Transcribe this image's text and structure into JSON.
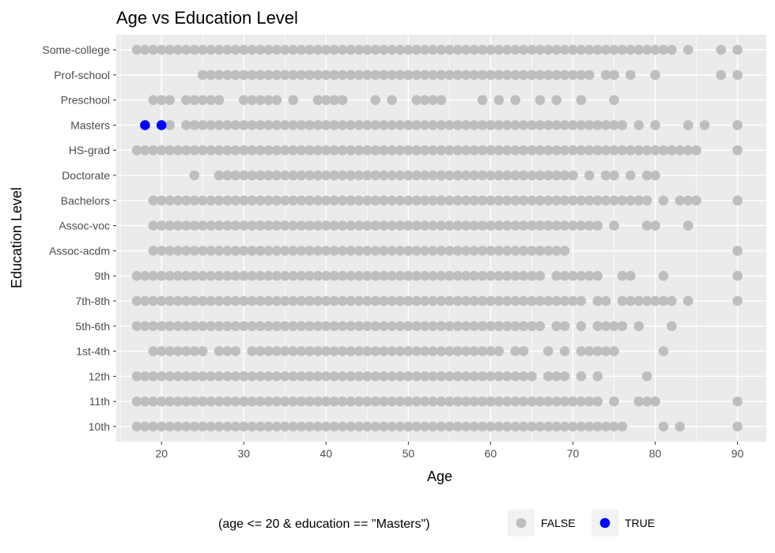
{
  "chart_data": {
    "type": "scatter",
    "title": "Age vs Education Level",
    "xlabel": "Age",
    "ylabel": "Education Level",
    "xlim": [
      14.5,
      93.5
    ],
    "x_ticks": [
      20,
      30,
      40,
      50,
      60,
      70,
      80,
      90
    ],
    "categories": [
      "10th",
      "11th",
      "12th",
      "1st-4th",
      "5th-6th",
      "7th-8th",
      "9th",
      "Assoc-acdm",
      "Assoc-voc",
      "Bachelors",
      "Doctorate",
      "HS-grad",
      "Masters",
      "Preschool",
      "Prof-school",
      "Some-college"
    ],
    "grid": true,
    "legend": {
      "title": "(age <= 20 & education == \"Masters\")",
      "position": "bottom",
      "entries": [
        {
          "label": "FALSE",
          "color": "#BEBEBE"
        },
        {
          "label": "TRUE",
          "color": "#0000FF"
        }
      ]
    },
    "colors": {
      "FALSE": "#BEBEBE",
      "TRUE": "#0000FF",
      "panel": "#EBEBEB",
      "grid": "#FFFFFF"
    },
    "series": [
      {
        "name": "FALSE",
        "points": {
          "Some-college": {
            "ranges": [
              [
                17,
                82
              ]
            ],
            "extra": [
              84,
              88,
              90
            ]
          },
          "Prof-school": {
            "ranges": [
              [
                25,
                72
              ]
            ],
            "extra": [
              74,
              75,
              77,
              80,
              88,
              90
            ]
          },
          "Preschool": {
            "ranges": [
              [
                19,
                21
              ],
              [
                23,
                27
              ],
              [
                30,
                34
              ],
              [
                39,
                42
              ]
            ],
            "extra": [
              36,
              46,
              48,
              51,
              52,
              53,
              54,
              59,
              61,
              63,
              66,
              68,
              71,
              75
            ]
          },
          "Masters": {
            "ranges": [
              [
                23,
                76
              ]
            ],
            "extra": [
              21,
              78,
              80,
              84,
              86,
              90
            ]
          },
          "HS-grad": {
            "ranges": [
              [
                17,
                85
              ]
            ],
            "extra": [
              90
            ]
          },
          "Doctorate": {
            "ranges": [
              [
                27,
                70
              ]
            ],
            "extra": [
              24,
              72,
              74,
              75,
              77,
              79,
              80
            ]
          },
          "Bachelors": {
            "ranges": [
              [
                19,
                79
              ]
            ],
            "extra": [
              81,
              83,
              84,
              85,
              90
            ]
          },
          "Assoc-voc": {
            "ranges": [
              [
                19,
                73
              ]
            ],
            "extra": [
              75,
              79,
              80,
              84
            ]
          },
          "Assoc-acdm": {
            "ranges": [
              [
                19,
                69
              ]
            ],
            "extra": [
              90
            ]
          },
          "9th": {
            "ranges": [
              [
                17,
                66
              ],
              [
                68,
                73
              ]
            ],
            "extra": [
              76,
              77,
              81,
              90
            ]
          },
          "7th-8th": {
            "ranges": [
              [
                17,
                71
              ],
              [
                76,
                82
              ]
            ],
            "extra": [
              73,
              74,
              84,
              90
            ]
          },
          "5th-6th": {
            "ranges": [
              [
                17,
                66
              ],
              [
                73,
                76
              ]
            ],
            "extra": [
              68,
              69,
              71,
              78,
              82
            ]
          },
          "1st-4th": {
            "ranges": [
              [
                19,
                25
              ],
              [
                27,
                29
              ],
              [
                31,
                61
              ],
              [
                71,
                75
              ]
            ],
            "extra": [
              63,
              64,
              67,
              69,
              81
            ]
          },
          "12th": {
            "ranges": [
              [
                17,
                65
              ]
            ],
            "extra": [
              67,
              68,
              69,
              71,
              73,
              79
            ]
          },
          "11th": {
            "ranges": [
              [
                17,
                73
              ]
            ],
            "extra": [
              75,
              78,
              79,
              80,
              90
            ]
          },
          "10th": {
            "ranges": [
              [
                17,
                76
              ]
            ],
            "extra": [
              81,
              83,
              90
            ]
          }
        }
      },
      {
        "name": "TRUE",
        "points": {
          "Masters": {
            "ranges": [],
            "extra": [
              18,
              20
            ]
          }
        }
      }
    ]
  }
}
